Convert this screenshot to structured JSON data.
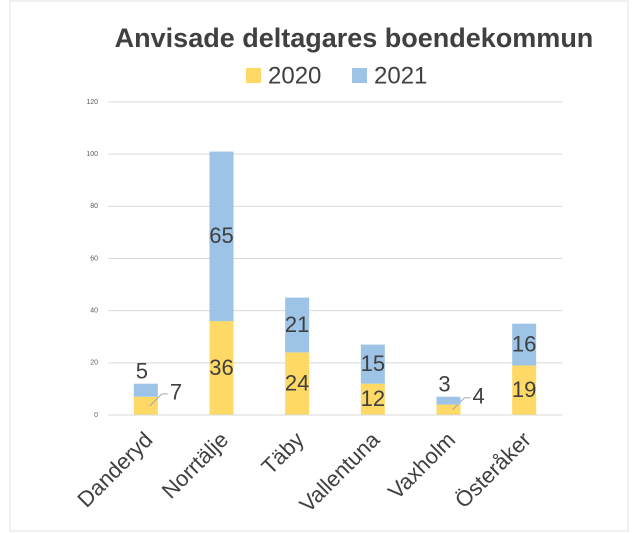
{
  "chart_data": {
    "type": "stacked_bar",
    "title": "Anvisade deltagares boendekommun",
    "categories": [
      "Danderyd",
      "Norrtälje",
      "Täby",
      "Vallentuna",
      "Vaxholm",
      "Österåker"
    ],
    "series": [
      {
        "name": "2020",
        "color": "#ffd966",
        "values": [
          7,
          36,
          24,
          12,
          4,
          19
        ]
      },
      {
        "name": "2021",
        "color": "#9dc3e6",
        "values": [
          5,
          65,
          21,
          15,
          3,
          16
        ]
      }
    ],
    "ylim": [
      0,
      120
    ],
    "yticks": [
      0,
      20,
      40,
      60,
      80,
      100,
      120
    ],
    "grid": true,
    "legend": "top"
  }
}
